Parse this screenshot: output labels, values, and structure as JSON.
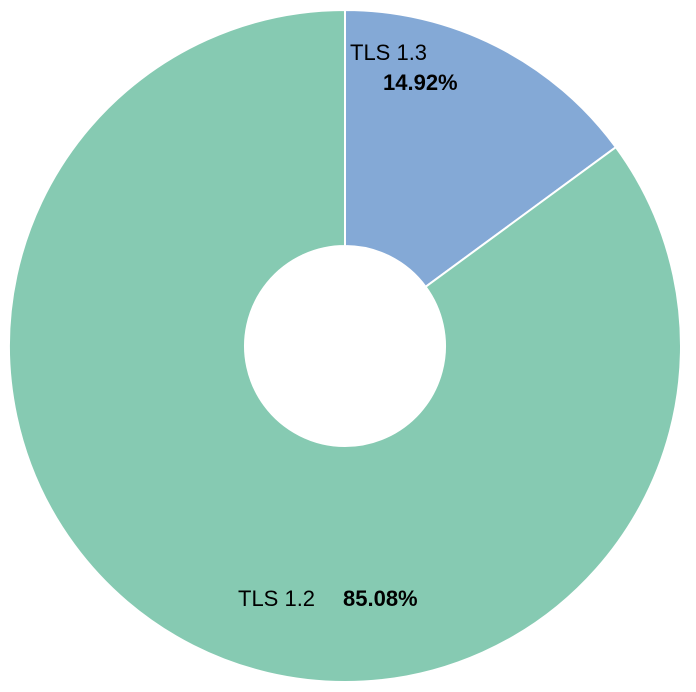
{
  "chart_data": {
    "type": "pie",
    "donut": true,
    "title": "",
    "slices": [
      {
        "label": "TLS 1.3",
        "value": 14.92,
        "value_label": "14.92%",
        "color": "#84a9d6"
      },
      {
        "label": "TLS 1.2",
        "value": 85.08,
        "value_label": "85.08%",
        "color": "#86cab2"
      }
    ],
    "start_angle": "top",
    "direction": "clockwise",
    "legend": "none"
  }
}
